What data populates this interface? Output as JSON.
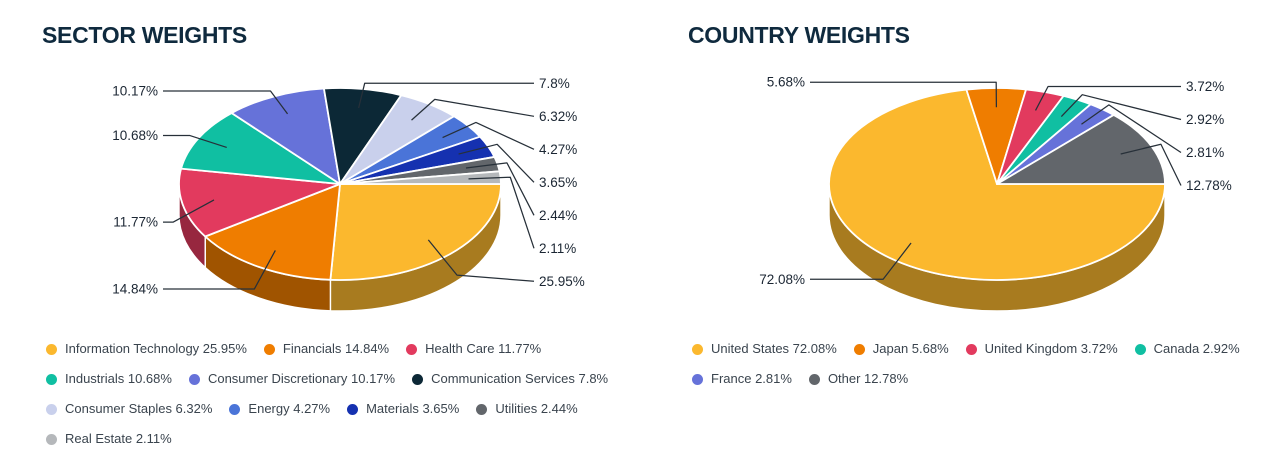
{
  "page": {
    "background": "#ffffff"
  },
  "colors": {
    "title_text": "#0f2a3e",
    "value_label_text": "#1b2633",
    "leader_line": "#273039",
    "legend_text": "#3a444e",
    "slice_divider": "#ffffff"
  },
  "chart_data": [
    {
      "type": "pie",
      "style": "3d",
      "title": "SECTOR WEIGHTS",
      "unit": "%",
      "direction": "clockwise",
      "start_angle_deg": 0,
      "legend_position": "bottom",
      "slices": [
        {
          "label": "Information Technology",
          "value": 25.95,
          "display": "25.95%",
          "color": "#FBB82E"
        },
        {
          "label": "Financials",
          "value": 14.84,
          "display": "14.84%",
          "color": "#EF7D00"
        },
        {
          "label": "Health Care",
          "value": 11.77,
          "display": "11.77%",
          "color": "#E23A5E"
        },
        {
          "label": "Industrials",
          "value": 10.68,
          "display": "10.68%",
          "color": "#10BFA2"
        },
        {
          "label": "Consumer Discretionary",
          "value": 10.17,
          "display": "10.17%",
          "color": "#6672D9"
        },
        {
          "label": "Communication Services",
          "value": 7.8,
          "display": "7.8%",
          "color": "#0C2836"
        },
        {
          "label": "Consumer Staples",
          "value": 6.32,
          "display": "6.32%",
          "color": "#C9D0EC"
        },
        {
          "label": "Energy",
          "value": 4.27,
          "display": "4.27%",
          "color": "#4A74D8"
        },
        {
          "label": "Materials",
          "value": 3.65,
          "display": "3.65%",
          "color": "#1531B0"
        },
        {
          "label": "Utilities",
          "value": 2.44,
          "display": "2.44%",
          "color": "#62666B"
        },
        {
          "label": "Real Estate",
          "value": 2.11,
          "display": "2.11%",
          "color": "#B5B8BB"
        }
      ]
    },
    {
      "type": "pie",
      "style": "3d",
      "title": "COUNTRY WEIGHTS",
      "unit": "%",
      "direction": "clockwise",
      "start_angle_deg": 0,
      "legend_position": "bottom",
      "slices": [
        {
          "label": "United States",
          "value": 72.08,
          "display": "72.08%",
          "color": "#FBB82E"
        },
        {
          "label": "Japan",
          "value": 5.68,
          "display": "5.68%",
          "color": "#EF7D00"
        },
        {
          "label": "United Kingdom",
          "value": 3.72,
          "display": "3.72%",
          "color": "#E23A5E"
        },
        {
          "label": "Canada",
          "value": 2.92,
          "display": "2.92%",
          "color": "#10BFA2"
        },
        {
          "label": "France",
          "value": 2.81,
          "display": "2.81%",
          "color": "#6672D9"
        },
        {
          "label": "Other",
          "value": 12.78,
          "display": "12.78%",
          "color": "#62666B"
        }
      ]
    }
  ]
}
